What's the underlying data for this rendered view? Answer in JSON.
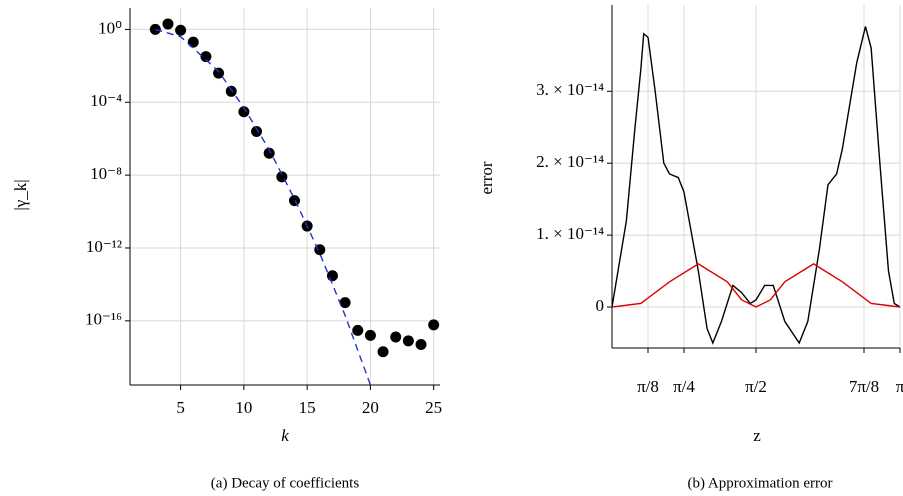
{
  "chart_data": [
    {
      "type": "scatter",
      "title": "(a) Decay of coefficients",
      "xlabel": "k",
      "ylabel": "|γ_k|",
      "ylog": true,
      "grid": true,
      "xlim": [
        1,
        25.5
      ],
      "xticks": [
        5,
        10,
        15,
        20,
        25
      ],
      "ylim": [
        3e-20,
        15
      ],
      "yticks": [
        {
          "value": 1,
          "label": "10⁰"
        },
        {
          "value": 0.0001,
          "label": "10⁻⁴"
        },
        {
          "value": 1e-08,
          "label": "10⁻⁸"
        },
        {
          "value": 1e-12,
          "label": "10⁻¹²"
        },
        {
          "value": 1e-16,
          "label": "10⁻¹⁶"
        }
      ],
      "series": [
        {
          "mode": "markers",
          "color": "#000000",
          "x": [
            3,
            4,
            5,
            6,
            7,
            8,
            9,
            10,
            11,
            12,
            13,
            14,
            15,
            16,
            17,
            18,
            19,
            20,
            21,
            22,
            23,
            24,
            25
          ],
          "values": [
            1,
            2,
            0.9,
            0.2,
            0.032,
            0.004,
            0.0004,
            3e-05,
            2.5e-06,
            1.6e-07,
            8e-09,
            4e-10,
            1.6e-11,
            8e-13,
            3e-14,
            1e-15,
            3e-17,
            1.6e-17,
            2e-18,
            1.3e-17,
            8e-18,
            5e-18,
            6e-17
          ]
        },
        {
          "mode": "line",
          "dash": true,
          "color": "#2233cc",
          "x": [
            3,
            5,
            8,
            10,
            12,
            14,
            16,
            18,
            20
          ],
          "values": [
            1,
            0.4,
            0.005,
            5e-05,
            2.5e-07,
            5e-10,
            5e-13,
            2e-16,
            3e-20
          ]
        }
      ]
    },
    {
      "type": "line",
      "title": "(b) Approximation error",
      "xlabel": "z",
      "ylabel": "error",
      "ylog": false,
      "grid": true,
      "xlim": [
        0,
        3.1416
      ],
      "xticks": [
        {
          "value": 0.3927,
          "label": "π/8"
        },
        {
          "value": 0.7854,
          "label": "π/4"
        },
        {
          "value": 1.5708,
          "label": "π/2"
        },
        {
          "value": 2.7489,
          "label": "7π/8"
        },
        {
          "value": 3.1416,
          "label": "π"
        }
      ],
      "ylim": [
        -5.7e-15,
        4.2e-14
      ],
      "yticks": [
        0,
        {
          "value": 1e-14,
          "label": "1. × 10⁻¹⁴"
        },
        {
          "value": 2e-14,
          "label": "2. × 10⁻¹⁴"
        },
        {
          "value": 3e-14,
          "label": "3. × 10⁻¹⁴"
        }
      ],
      "series": [
        {
          "mode": "line",
          "color": "#000000",
          "x": [
            0,
            0.157,
            0.251,
            0.314,
            0.346,
            0.393,
            0.471,
            0.565,
            0.628,
            0.723,
            0.785,
            0.942,
            1.037,
            1.1,
            1.194,
            1.319,
            1.414,
            1.508,
            1.571,
            1.665,
            1.759,
            1.885,
            2.042,
            2.136,
            2.262,
            2.356,
            2.45,
            2.513,
            2.67,
            2.765,
            2.827,
            2.922,
            3.016,
            3.079,
            3.1416
          ],
          "values": [
            0,
            1.2e-14,
            2.5e-14,
            3.3e-14,
            3.8e-14,
            3.75e-14,
            3e-14,
            2e-14,
            1.85e-14,
            1.8e-14,
            1.6e-14,
            5e-15,
            -3e-15,
            -5e-15,
            -2e-15,
            3e-15,
            2e-15,
            5e-16,
            1e-15,
            3e-15,
            3e-15,
            -2e-15,
            -5e-15,
            -2e-15,
            8e-15,
            1.7e-14,
            1.85e-14,
            2.2e-14,
            3.4e-14,
            3.9e-14,
            3.6e-14,
            2e-14,
            5e-15,
            5e-16,
            0
          ]
        },
        {
          "mode": "line",
          "color": "#dd0000",
          "x": [
            0,
            0.314,
            0.628,
            0.942,
            1.257,
            1.414,
            1.571,
            1.728,
            1.885,
            2.199,
            2.513,
            2.827,
            3.1416
          ],
          "values": [
            0,
            5e-16,
            3.5e-15,
            6e-15,
            3.5e-15,
            1e-15,
            0,
            1e-15,
            3.5e-15,
            6e-15,
            3.5e-15,
            5e-16,
            0
          ]
        }
      ]
    }
  ]
}
